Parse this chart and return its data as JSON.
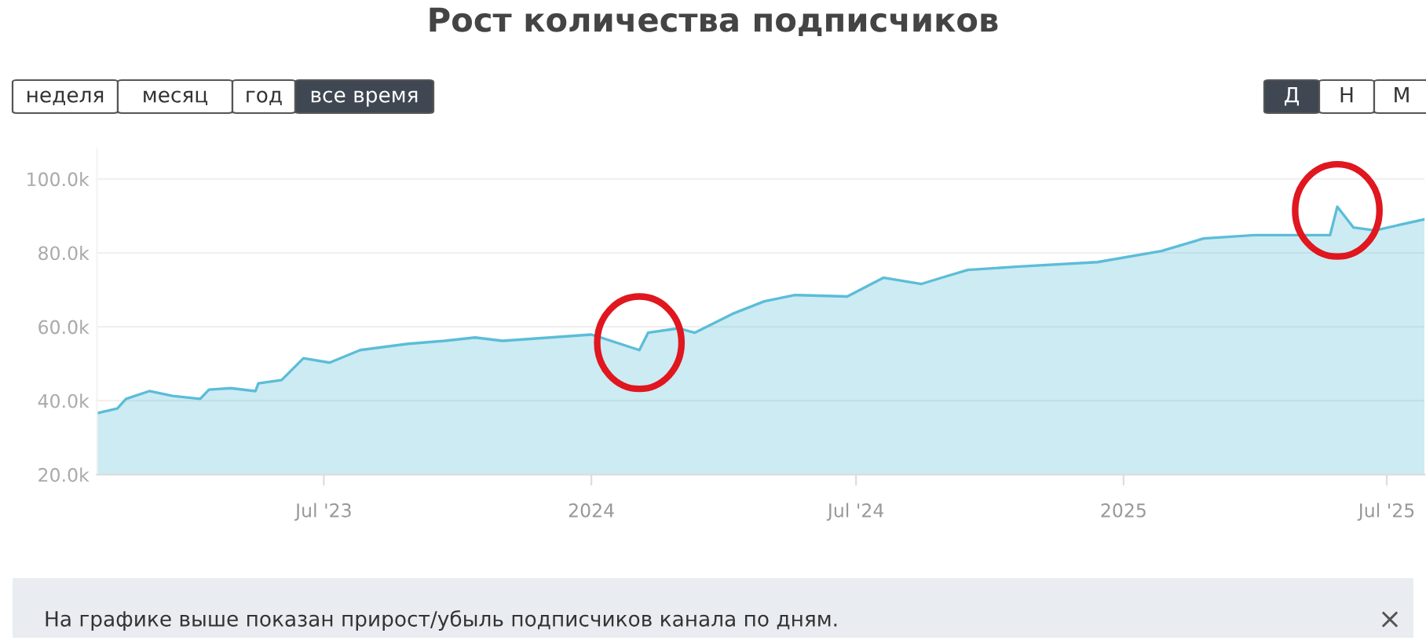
{
  "chart_data": {
    "type": "area",
    "title": "Рост количества подписчиков",
    "x": [
      "2023-01-26",
      "2023-02-09",
      "2023-02-15",
      "2023-03-03",
      "2023-03-19",
      "2023-04-07",
      "2023-04-13",
      "2023-04-28",
      "2023-05-15",
      "2023-05-17",
      "2023-06-02",
      "2023-06-17",
      "2023-07-05",
      "2023-07-26",
      "2023-08-28",
      "2023-09-22",
      "2023-10-13",
      "2023-11-01",
      "2024-01-01",
      "2024-02-03",
      "2024-02-09",
      "2024-03-01",
      "2024-03-12",
      "2024-04-07",
      "2024-04-29",
      "2024-05-20",
      "2024-06-25",
      "2024-07-20",
      "2024-08-15",
      "2024-08-29",
      "2024-09-16",
      "2024-10-21",
      "2024-12-14",
      "2025-01-27",
      "2025-02-25",
      "2025-04-01",
      "2025-05-23",
      "2025-05-28",
      "2025-06-08",
      "2025-06-23",
      "2025-07-27"
    ],
    "series": [
      {
        "color": "#5bbdd8",
        "values": [
          36.6,
          37.9,
          40.5,
          42.6,
          41.3,
          40.5,
          43.0,
          43.4,
          42.6,
          44.7,
          45.6,
          51.5,
          50.3,
          53.7,
          55.4,
          56.2,
          57.1,
          56.2,
          57.9,
          53.7,
          58.4,
          59.6,
          58.4,
          63.5,
          66.9,
          68.6,
          68.2,
          73.3,
          71.6,
          73.3,
          75.4,
          76.3,
          77.5,
          80.5,
          83.9,
          84.8,
          84.8,
          92.5,
          86.9,
          86.1,
          89.1
        ]
      }
    ],
    "xlim": [
      "2023-01-26",
      "2025-07-27"
    ],
    "xticks": [
      {
        "value": "2023-07-01",
        "label": "Jul '23"
      },
      {
        "value": "2024-01-01",
        "label": "2024"
      },
      {
        "value": "2024-07-01",
        "label": "Jul '24"
      },
      {
        "value": "2025-01-01",
        "label": "2025"
      },
      {
        "value": "2025-07-01",
        "label": "Jul '25"
      }
    ],
    "ylim": [
      20,
      108
    ],
    "yticks": [
      {
        "value": 20,
        "label": "20.0k"
      },
      {
        "value": 40,
        "label": "40.0k"
      },
      {
        "value": 60,
        "label": "60.0k"
      },
      {
        "value": 80,
        "label": "80.0k"
      },
      {
        "value": 100,
        "label": "100.0k"
      }
    ],
    "grid": "y",
    "annotations": [
      "неделя",
      "месяц",
      "год",
      "все время",
      "Д",
      "Н",
      "М",
      "На графике выше показан прирост/убыль подписчиков канала по дням.",
      "×"
    ]
  }
}
